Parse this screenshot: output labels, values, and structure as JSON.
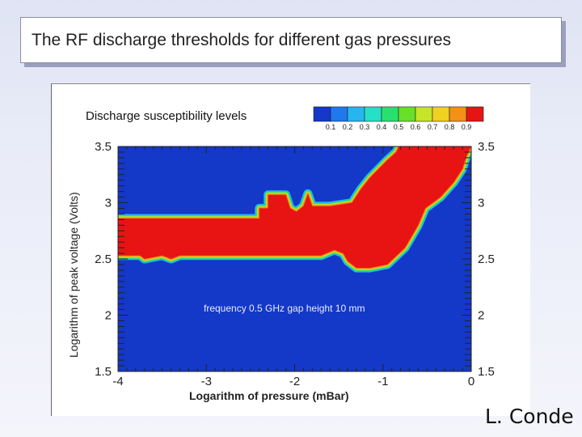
{
  "slide": {
    "title": "The RF discharge thresholds for different gas pressures",
    "author": "L. Conde"
  },
  "chart_data": {
    "type": "heatmap",
    "title": "",
    "colorbar": {
      "title": "Discharge  susceptibility levels",
      "levels": [
        "0.1",
        "0.2",
        "0.3",
        "0.4",
        "0.5",
        "0.6",
        "0.7",
        "0.8",
        "0.9"
      ],
      "colors": [
        "#1438c8",
        "#1e78ee",
        "#25b6f0",
        "#25e0c6",
        "#28e070",
        "#66e028",
        "#c6e428",
        "#f0d020",
        "#f29018",
        "#e81414"
      ]
    },
    "xlabel": "Logarithm of pressure (mBar)",
    "ylabel": "Logarithm of peak voltage (Volts)",
    "xlim": [
      -4,
      0
    ],
    "ylim": [
      1.5,
      3.5
    ],
    "xticks": [
      "-4",
      "-3",
      "-2",
      "-1",
      "0"
    ],
    "yticks": [
      "1.5",
      "2",
      "2.5",
      "3",
      "3.5"
    ],
    "annotation": "frequency 0.5 GHz  gap height 10 mm",
    "background_level": "0.1",
    "discharge_region_level": "0.9",
    "discharge_region": {
      "upper_boundary": [
        [
          -4,
          2.86
        ],
        [
          -2.4,
          2.86
        ],
        [
          -2.4,
          2.95
        ],
        [
          -2.3,
          2.95
        ],
        [
          -2.3,
          3.07
        ],
        [
          -2.1,
          3.07
        ],
        [
          -2.05,
          2.95
        ],
        [
          -1.98,
          2.92
        ],
        [
          -1.9,
          2.97
        ],
        [
          -1.85,
          3.08
        ],
        [
          -1.8,
          2.97
        ],
        [
          -1.6,
          2.97
        ],
        [
          -1.35,
          3.0
        ],
        [
          -1.25,
          3.12
        ],
        [
          -1.15,
          3.22
        ],
        [
          -1.05,
          3.3
        ],
        [
          -0.95,
          3.38
        ],
        [
          -0.85,
          3.45
        ],
        [
          -0.82,
          3.5
        ],
        [
          0,
          3.5
        ]
      ],
      "lower_boundary": [
        [
          -4,
          2.53
        ],
        [
          -3.75,
          2.53
        ],
        [
          -3.7,
          2.5
        ],
        [
          -3.5,
          2.53
        ],
        [
          -3.4,
          2.5
        ],
        [
          -3.3,
          2.53
        ],
        [
          -1.7,
          2.53
        ],
        [
          -1.55,
          2.58
        ],
        [
          -1.45,
          2.55
        ],
        [
          -1.4,
          2.48
        ],
        [
          -1.3,
          2.42
        ],
        [
          -1.15,
          2.42
        ],
        [
          -0.95,
          2.45
        ],
        [
          -0.75,
          2.6
        ],
        [
          -0.6,
          2.8
        ],
        [
          -0.52,
          2.95
        ],
        [
          -0.35,
          3.05
        ],
        [
          -0.2,
          3.18
        ],
        [
          -0.1,
          3.3
        ],
        [
          -0.05,
          3.42
        ],
        [
          0,
          3.5
        ]
      ]
    }
  }
}
